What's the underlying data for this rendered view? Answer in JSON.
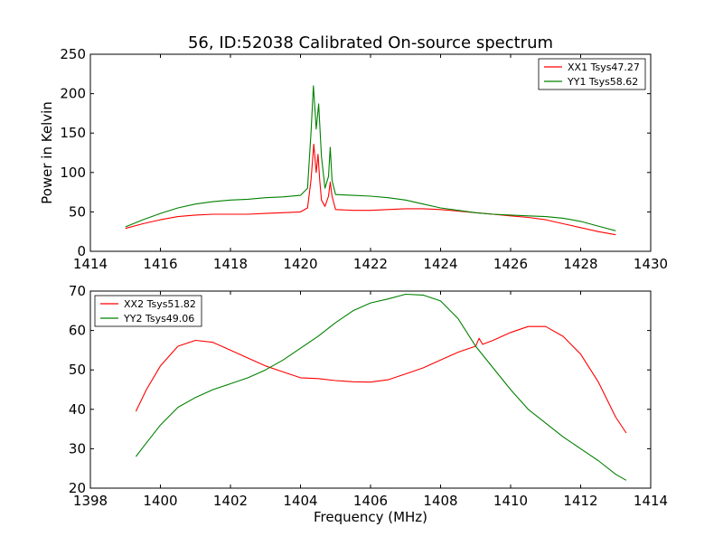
{
  "figure": {
    "title": "56, ID:52038 Calibrated On-source spectrum"
  },
  "chart_data": [
    {
      "type": "line",
      "title": "56, ID:52038 Calibrated On-source spectrum",
      "xlabel": "",
      "ylabel": "Power in Kelvin",
      "xlim": [
        1414,
        1430
      ],
      "ylim": [
        0,
        250
      ],
      "xticks": [
        "1414",
        "1416",
        "1418",
        "1420",
        "1422",
        "1424",
        "1426",
        "1428",
        "1430"
      ],
      "yticks": [
        "0",
        "50",
        "100",
        "150",
        "200",
        "250"
      ],
      "grid": false,
      "legend_position": "upper-right",
      "series": [
        {
          "name": "XX1 Tsys47.27",
          "color": "#ff0000",
          "x": [
            1415.0,
            1415.5,
            1416.0,
            1416.5,
            1417.0,
            1417.5,
            1418.0,
            1418.5,
            1419.0,
            1419.5,
            1420.0,
            1420.2,
            1420.3,
            1420.38,
            1420.45,
            1420.5,
            1420.55,
            1420.6,
            1420.7,
            1420.8,
            1420.85,
            1420.9,
            1421.0,
            1421.5,
            1422.0,
            1422.5,
            1423.0,
            1423.5,
            1424.0,
            1424.5,
            1425.0,
            1425.5,
            1426.0,
            1426.5,
            1427.0,
            1427.5,
            1428.0,
            1428.5,
            1429.0
          ],
          "y": [
            29,
            35,
            40,
            44,
            46,
            47,
            47,
            47,
            48,
            49,
            50,
            55,
            90,
            136,
            100,
            123,
            90,
            65,
            57,
            70,
            88,
            70,
            53,
            52,
            52,
            53,
            54,
            54,
            53,
            51,
            49,
            47,
            45,
            43,
            40,
            35,
            30,
            25,
            21
          ]
        },
        {
          "name": "YY1 Tsys58.62",
          "color": "#008000",
          "x": [
            1415.0,
            1415.5,
            1416.0,
            1416.5,
            1417.0,
            1417.5,
            1418.0,
            1418.5,
            1419.0,
            1419.5,
            1420.0,
            1420.2,
            1420.3,
            1420.37,
            1420.45,
            1420.52,
            1420.6,
            1420.7,
            1420.8,
            1420.85,
            1420.9,
            1421.0,
            1421.5,
            1422.0,
            1422.5,
            1423.0,
            1423.5,
            1424.0,
            1424.5,
            1425.0,
            1425.5,
            1426.0,
            1426.5,
            1427.0,
            1427.5,
            1428.0,
            1428.5,
            1429.0
          ],
          "y": [
            31,
            40,
            48,
            55,
            60,
            63,
            65,
            66,
            68,
            69,
            71,
            80,
            150,
            210,
            155,
            187,
            120,
            80,
            95,
            132,
            90,
            72,
            71,
            70,
            68,
            65,
            60,
            55,
            52,
            49,
            47,
            46,
            45,
            44,
            42,
            38,
            32,
            26
          ]
        }
      ]
    },
    {
      "type": "line",
      "title": "",
      "xlabel": "Frequency (MHz)",
      "ylabel": "",
      "xlim": [
        1398,
        1414
      ],
      "ylim": [
        20,
        70
      ],
      "xticks": [
        "1398",
        "1400",
        "1402",
        "1404",
        "1406",
        "1408",
        "1410",
        "1412",
        "1414"
      ],
      "yticks": [
        "20",
        "30",
        "40",
        "50",
        "60",
        "70"
      ],
      "grid": false,
      "legend_position": "upper-left",
      "series": [
        {
          "name": "XX2 Tsys51.82",
          "color": "#ff0000",
          "x": [
            1399.3,
            1399.6,
            1400.0,
            1400.5,
            1401.0,
            1401.5,
            1402.0,
            1402.5,
            1403.0,
            1403.5,
            1404.0,
            1404.5,
            1405.0,
            1405.5,
            1406.0,
            1406.5,
            1407.0,
            1407.5,
            1408.0,
            1408.5,
            1409.0,
            1409.1,
            1409.2,
            1409.5,
            1410.0,
            1410.5,
            1411.0,
            1411.5,
            1412.0,
            1412.5,
            1413.0,
            1413.3
          ],
          "y": [
            39.5,
            45,
            51,
            56,
            57.5,
            57,
            55,
            53,
            51,
            49.5,
            48,
            47.8,
            47.3,
            47.0,
            46.9,
            47.5,
            49,
            50.5,
            52.5,
            54.5,
            56,
            58,
            56.5,
            57.5,
            59.5,
            61,
            61,
            58.5,
            54,
            47,
            38,
            34
          ]
        },
        {
          "name": "YY2 Tsys49.06",
          "color": "#008000",
          "x": [
            1399.3,
            1399.6,
            1400.0,
            1400.5,
            1401.0,
            1401.5,
            1402.0,
            1402.5,
            1403.0,
            1403.5,
            1404.0,
            1404.5,
            1405.0,
            1405.5,
            1406.0,
            1406.5,
            1407.0,
            1407.5,
            1408.0,
            1408.5,
            1409.0,
            1409.5,
            1410.0,
            1410.5,
            1411.0,
            1411.5,
            1412.0,
            1412.5,
            1413.0,
            1413.3
          ],
          "y": [
            28,
            31.5,
            36,
            40.5,
            43,
            45,
            46.5,
            48,
            50,
            52.5,
            55.5,
            58.5,
            62,
            65,
            67,
            68,
            69.2,
            69,
            67.5,
            63,
            56,
            50.5,
            45,
            40,
            36.5,
            33,
            30,
            27,
            23.5,
            22
          ]
        }
      ]
    }
  ]
}
